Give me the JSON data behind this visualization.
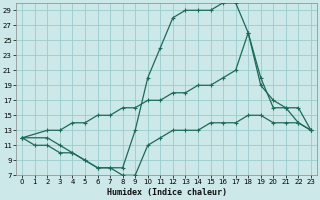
{
  "bg_color": "#cce8e8",
  "grid_color": "#99cccc",
  "line_color": "#1a6b5a",
  "xlabel": "Humidex (Indice chaleur)",
  "xlim": [
    -0.5,
    23.5
  ],
  "ylim": [
    7,
    30
  ],
  "xticks": [
    0,
    1,
    2,
    3,
    4,
    5,
    6,
    7,
    8,
    9,
    10,
    11,
    12,
    13,
    14,
    15,
    16,
    17,
    18,
    19,
    20,
    21,
    22,
    23
  ],
  "yticks": [
    7,
    9,
    11,
    13,
    15,
    17,
    19,
    21,
    23,
    25,
    27,
    29
  ],
  "line1_x": [
    0,
    1,
    2,
    3,
    4,
    5,
    6,
    7,
    8,
    9,
    10,
    11,
    12,
    13,
    14,
    15,
    16,
    17,
    18,
    19,
    20,
    21,
    22,
    23
  ],
  "line1_y": [
    12,
    11,
    11,
    10,
    10,
    9,
    8,
    8,
    8,
    13,
    20,
    24,
    28,
    29,
    29,
    29,
    30,
    30,
    26,
    19,
    17,
    16,
    14,
    13
  ],
  "line2_x": [
    0,
    2,
    3,
    4,
    5,
    6,
    7,
    8,
    9,
    10,
    11,
    12,
    13,
    14,
    15,
    16,
    17,
    18,
    19,
    20,
    21,
    22,
    23
  ],
  "line2_y": [
    12,
    13,
    13,
    14,
    14,
    15,
    15,
    16,
    16,
    17,
    17,
    18,
    18,
    19,
    19,
    20,
    21,
    26,
    20,
    16,
    16,
    16,
    13
  ],
  "line3_x": [
    0,
    2,
    3,
    4,
    5,
    6,
    7,
    8,
    9,
    10,
    11,
    12,
    13,
    14,
    15,
    16,
    17,
    18,
    19,
    20,
    21,
    22,
    23
  ],
  "line3_y": [
    12,
    12,
    11,
    10,
    9,
    8,
    8,
    7,
    7,
    11,
    12,
    13,
    13,
    13,
    14,
    14,
    14,
    15,
    15,
    14,
    14,
    14,
    13
  ]
}
